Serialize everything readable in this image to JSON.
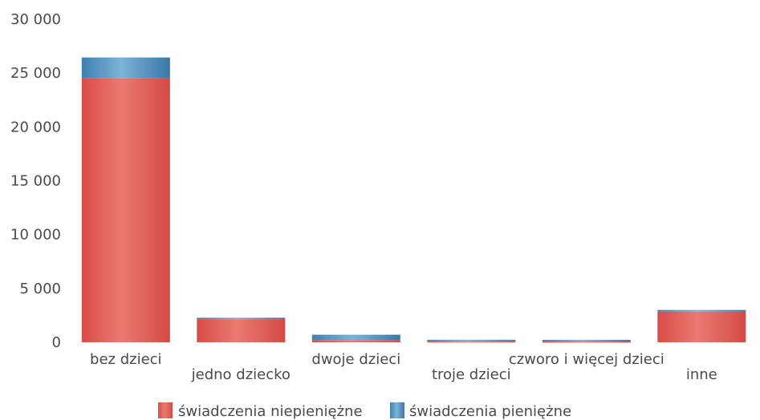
{
  "chart_data": {
    "type": "bar",
    "stacked": true,
    "categories": [
      "bez dzieci",
      "jedno dziecko",
      "dwoje dzieci",
      "troje dzieci",
      "czworo i więcej dzieci",
      "inne"
    ],
    "series": [
      {
        "name": "świadczenia niepieniężne",
        "values": [
          24500,
          2150,
          200,
          100,
          80,
          2850
        ],
        "color": "#e0605a"
      },
      {
        "name": "świadczenia pieniężne",
        "values": [
          1950,
          130,
          500,
          130,
          140,
          150
        ],
        "color": "#5b9bc8"
      }
    ],
    "yticks": [
      "30 000",
      "25 000",
      "20 000",
      "15 000",
      "10 000",
      "5 000",
      "0"
    ],
    "ylim": [
      0,
      30000
    ],
    "grid": false,
    "legend_position": "bottom"
  }
}
